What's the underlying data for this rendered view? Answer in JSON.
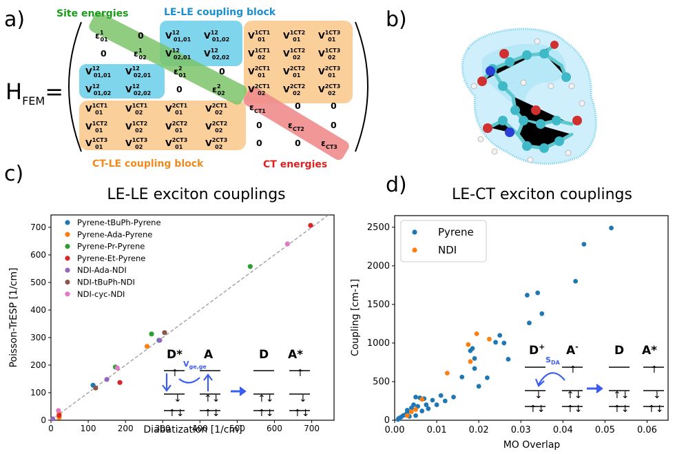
{
  "panels": {
    "a": {
      "letter": "a)",
      "hamiltonian_label": "H",
      "hamiltonian_sub": "FEM",
      "equals": "=",
      "block_labels": {
        "site": "Site energies",
        "lele": "LE-LE coupling block",
        "ctle": "CT-LE coupling block",
        "ct": "CT energies"
      },
      "colors": {
        "site": "#1a9c1a",
        "lele": "#1a8fd0",
        "ctle": "#f08a1c",
        "ct": "#e02020",
        "site_fill": "#7cc46a",
        "lele_fill": "#7fd6ec",
        "ctle_fill": "#fbcf9a",
        "ct_fill": "#f08c8c"
      }
    },
    "b": {
      "letter": "b)"
    },
    "c": {
      "letter": "c)",
      "title": "LE-LE exciton couplings",
      "xlabel": "Diabatization [1/cm]",
      "ylabel": "Poisson-TrESP [1/cm]",
      "xticks": [
        "0",
        "100",
        "200",
        "300",
        "400",
        "500",
        "600",
        "700"
      ],
      "yticks": [
        "0",
        "100",
        "200",
        "300",
        "400",
        "500",
        "600",
        "700"
      ],
      "inset": {
        "dstar": "D*",
        "a": "A",
        "d": "D",
        "astar": "A*",
        "vlabel": "V",
        "vsub": "ge,ge"
      }
    },
    "d": {
      "letter": "d)",
      "title": "LE-CT exciton couplings",
      "xlabel": "MO Overlap",
      "ylabel": "Coupling [cm-1]",
      "xticks": [
        "0.00",
        "0.01",
        "0.02",
        "0.03",
        "0.04",
        "0.05",
        "0.06"
      ],
      "yticks": [
        "0",
        "500",
        "1000",
        "1500",
        "2000",
        "2500"
      ],
      "inset": {
        "dplus": "D",
        "dplus_sup": "+",
        "aminus": "A",
        "aminus_sup": "-",
        "d": "D",
        "astar": "A*",
        "slabel": "S",
        "ssub": "DA"
      }
    }
  },
  "chart_data": [
    {
      "type": "scatter",
      "title": "LE-LE exciton couplings",
      "xlabel": "Diabatization [1/cm]",
      "ylabel": "Poisson-TrESP [1/cm]",
      "xlim": [
        0,
        760
      ],
      "ylim": [
        0,
        745
      ],
      "legend_position": "top-left",
      "grid": false,
      "diagonal": true,
      "series": [
        {
          "name": "Pyrene-tBuPh-Pyrene",
          "color": "#1f77b4",
          "points": [
            [
              113,
              127
            ],
            [
              290,
              290
            ]
          ]
        },
        {
          "name": "Pyrene-Ada-Pyrene",
          "color": "#ff7f0e",
          "points": [
            [
              22,
              10
            ],
            [
              22,
              25
            ],
            [
              258,
              268
            ]
          ]
        },
        {
          "name": "Pyrene-Pr-Pyrene",
          "color": "#2ca02c",
          "points": [
            [
              173,
              193
            ],
            [
              270,
              313
            ],
            [
              535,
              558
            ]
          ]
        },
        {
          "name": "Pyrene-Et-Pyrene",
          "color": "#d62728",
          "points": [
            [
              185,
              137
            ],
            [
              22,
              18
            ],
            [
              697,
              707
            ]
          ]
        },
        {
          "name": "NDI-Ada-NDI",
          "color": "#9467bd",
          "points": [
            [
              150,
              148
            ],
            [
              292,
              290
            ],
            [
              5,
              5
            ]
          ]
        },
        {
          "name": "NDI-tBuPh-NDI",
          "color": "#8c564b",
          "points": [
            [
              120,
              117
            ],
            [
              305,
              318
            ]
          ]
        },
        {
          "name": "NDI-cyc-NDI",
          "color": "#e377c2",
          "points": [
            [
              20,
              35
            ],
            [
              178,
              190
            ],
            [
              635,
              640
            ]
          ]
        }
      ]
    },
    {
      "type": "scatter",
      "title": "LE-CT exciton couplings",
      "xlabel": "MO Overlap",
      "ylabel": "Coupling [cm-1]",
      "xlim": [
        0,
        0.065
      ],
      "ylim": [
        0,
        2650
      ],
      "legend_position": "top-left",
      "grid": false,
      "series": [
        {
          "name": "Pyrene",
          "color": "#1f77b4",
          "points": [
            [
              0.0008,
              10
            ],
            [
              0.001,
              25
            ],
            [
              0.0015,
              40
            ],
            [
              0.002,
              60
            ],
            [
              0.0025,
              70
            ],
            [
              0.003,
              100
            ],
            [
              0.003,
              130
            ],
            [
              0.0035,
              50
            ],
            [
              0.004,
              160
            ],
            [
              0.0045,
              200
            ],
            [
              0.005,
              60
            ],
            [
              0.005,
              300
            ],
            [
              0.0055,
              180
            ],
            [
              0.006,
              290
            ],
            [
              0.0065,
              120
            ],
            [
              0.007,
              280
            ],
            [
              0.0075,
              200
            ],
            [
              0.008,
              150
            ],
            [
              0.009,
              260
            ],
            [
              0.01,
              200
            ],
            [
              0.011,
              320
            ],
            [
              0.012,
              250
            ],
            [
              0.014,
              300
            ],
            [
              0.016,
              560
            ],
            [
              0.018,
              900
            ],
            [
              0.0185,
              930
            ],
            [
              0.019,
              800
            ],
            [
              0.019,
              670
            ],
            [
              0.02,
              440
            ],
            [
              0.022,
              550
            ],
            [
              0.024,
              1010
            ],
            [
              0.026,
              1000
            ],
            [
              0.027,
              790
            ],
            [
              0.025,
              1100
            ],
            [
              0.0315,
              1620
            ],
            [
              0.032,
              1260
            ],
            [
              0.034,
              1650
            ],
            [
              0.035,
              1380
            ],
            [
              0.043,
              1800
            ],
            [
              0.045,
              2280
            ],
            [
              0.0515,
              2490
            ]
          ]
        },
        {
          "name": "NDI",
          "color": "#ff7f0e",
          "points": [
            [
              0.003,
              60
            ],
            [
              0.004,
              110
            ],
            [
              0.005,
              140
            ],
            [
              0.0065,
              270
            ],
            [
              0.0125,
              610
            ],
            [
              0.0175,
              980
            ],
            [
              0.018,
              760
            ],
            [
              0.0195,
              1120
            ],
            [
              0.0225,
              1050
            ]
          ]
        }
      ]
    }
  ]
}
